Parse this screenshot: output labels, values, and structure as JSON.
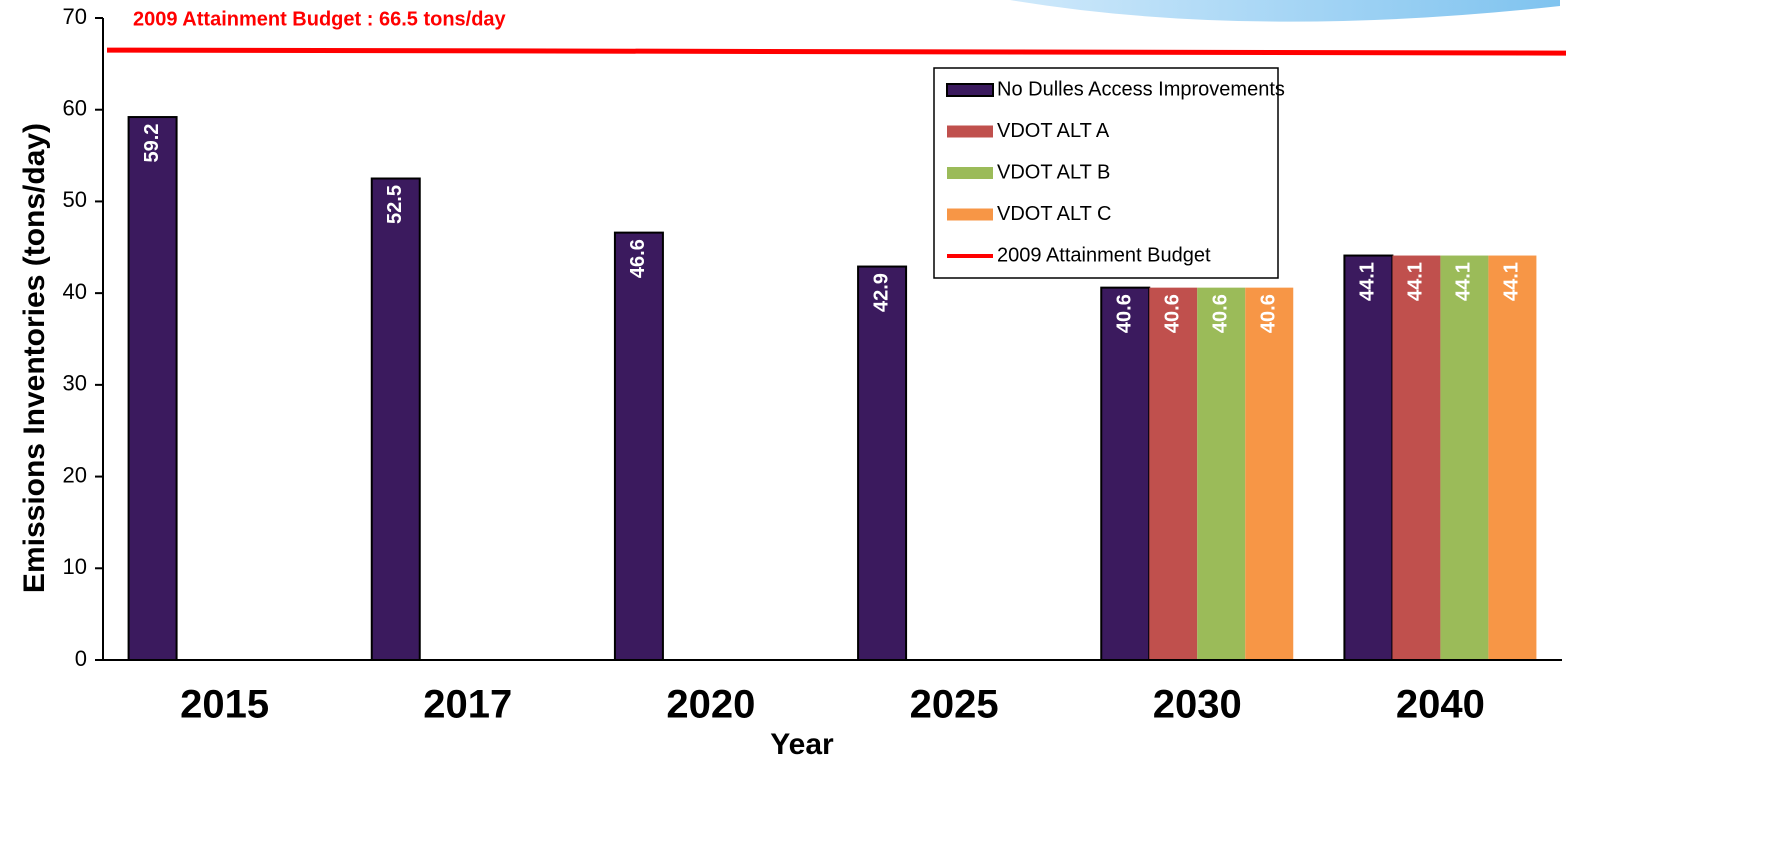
{
  "chart_data": {
    "type": "bar",
    "annotation": "2009 Attainment Budget :  66.5 tons/day",
    "x_label": "Year",
    "y_label": "Emissions Inventories (tons/day)",
    "categories": [
      "2015",
      "2017",
      "2020",
      "2025",
      "2030",
      "2040"
    ],
    "series": [
      {
        "name": "No Dulles Access Improvements",
        "color": "#3b1a5e",
        "values": [
          59.2,
          52.5,
          46.6,
          42.9,
          40.6,
          44.1
        ]
      },
      {
        "name": "VDOT ALT A",
        "color": "#c0504d",
        "values": [
          null,
          null,
          null,
          null,
          40.6,
          44.1
        ]
      },
      {
        "name": "VDOT ALT B",
        "color": "#9bbb59",
        "values": [
          null,
          null,
          null,
          null,
          40.6,
          44.1
        ]
      },
      {
        "name": "VDOT ALT C",
        "color": "#f79646",
        "values": [
          null,
          null,
          null,
          null,
          40.6,
          44.1
        ]
      }
    ],
    "reference_line": {
      "name": "2009 Attainment Budget",
      "value": 66.5,
      "color": "#ff0000"
    },
    "ylim": [
      0,
      70
    ],
    "yticks": [
      0,
      10,
      20,
      30,
      40,
      50,
      60,
      70
    ],
    "grid": false,
    "legend": "upper right"
  }
}
